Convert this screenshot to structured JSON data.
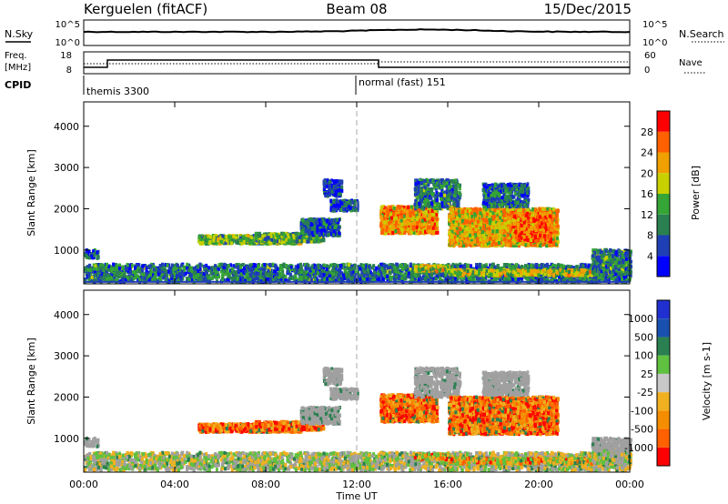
{
  "header": {
    "title": "Kerguelen (fitACF)",
    "beam": "Beam 08",
    "date": "15/Dec/2015"
  },
  "noise_panel": {
    "left_label": "N.Sky",
    "left_ticks": [
      "10^5",
      "10^0"
    ],
    "right_label": "N.Search",
    "right_ticks": [
      "10^5",
      "10^0"
    ]
  },
  "freq_panel": {
    "left_label_1": "Freq.",
    "left_label_2": "[MHz]",
    "left_ticks": [
      "18",
      "8"
    ],
    "right_label": "Nave",
    "right_ticks": [
      "60",
      "0"
    ],
    "cpid_label": "CPID",
    "cpid_1": "themis 3300",
    "cpid_2": "normal (fast) 151"
  },
  "colors": {
    "power": [
      "#0000ff",
      "#1f3fb4",
      "#2a8050",
      "#35a535",
      "#c8d000",
      "#f0a000",
      "#ff6000",
      "#ff0000"
    ],
    "velocity": [
      "#ff0000",
      "#ff6000",
      "#f58d00",
      "#f0b020",
      "#c8c8c8",
      "#60c040",
      "#2a8050",
      "#1a50b0",
      "#2030d0"
    ],
    "ground": "#a0a0a0"
  },
  "chart_data": [
    {
      "type": "heatmap",
      "name": "power",
      "ylabel": "Slant Range [km]",
      "yticks": [
        "1000",
        "2000",
        "3000",
        "4000"
      ],
      "ylim": [
        180,
        4590
      ],
      "colorbar_label": "Power [dB]",
      "colorbar_ticks": [
        "4",
        "8",
        "12",
        "16",
        "20",
        "24",
        "28"
      ],
      "clim": [
        0,
        32
      ]
    },
    {
      "type": "heatmap",
      "name": "velocity",
      "ylabel": "Slant Range [km]",
      "yticks": [
        "1000",
        "2000",
        "3000",
        "4000"
      ],
      "ylim": [
        180,
        4590
      ],
      "colorbar_label": "Velocity [m s-1]",
      "colorbar_ticks": [
        "1000",
        "500",
        "100",
        "25",
        "-25",
        "-100",
        "-500",
        "-1000"
      ]
    }
  ],
  "time_axis": {
    "xlabel": "Time UT",
    "ticks": [
      "00:00",
      "04:00",
      "08:00",
      "12:00",
      "16:00",
      "20:00",
      "00:00"
    ],
    "range_hours": [
      0,
      24
    ],
    "cpid_change_hour": 12
  },
  "echo_regions": [
    {
      "t0": 0.0,
      "t1": 24.0,
      "r0": 230,
      "r1": 650,
      "level": 0.28,
      "density": 0.55
    },
    {
      "t0": 5.0,
      "t1": 9.5,
      "r0": 1150,
      "r1": 1350,
      "level": 0.45,
      "density": 0.85
    },
    {
      "t0": 7.5,
      "t1": 10.5,
      "r0": 1200,
      "r1": 1400,
      "level": 0.4,
      "density": 0.75
    },
    {
      "t0": 9.5,
      "t1": 11.2,
      "r0": 1350,
      "r1": 1750,
      "level": 0.22,
      "density": 0.7
    },
    {
      "t0": 10.8,
      "t1": 12.0,
      "r0": 1950,
      "r1": 2200,
      "level": 0.22,
      "density": 0.75
    },
    {
      "t0": 10.5,
      "t1": 11.3,
      "r0": 2300,
      "r1": 2700,
      "level": 0.15,
      "density": 0.45
    },
    {
      "t0": 13.0,
      "t1": 15.5,
      "r0": 1400,
      "r1": 2050,
      "level": 0.7,
      "density": 0.85
    },
    {
      "t0": 14.5,
      "t1": 16.5,
      "r0": 2000,
      "r1": 2700,
      "level": 0.3,
      "density": 0.4
    },
    {
      "t0": 16.0,
      "t1": 20.8,
      "r0": 1100,
      "r1": 2000,
      "level": 0.65,
      "density": 0.8
    },
    {
      "t0": 18.8,
      "t1": 20.5,
      "r0": 1200,
      "r1": 1900,
      "level": 0.8,
      "density": 0.85
    },
    {
      "t0": 17.5,
      "t1": 19.5,
      "r0": 2050,
      "r1": 2600,
      "level": 0.25,
      "density": 0.45
    },
    {
      "t0": 14.5,
      "t1": 16.0,
      "r0": 480,
      "r1": 620,
      "level": 0.55,
      "density": 0.9
    },
    {
      "t0": 16.0,
      "t1": 22.5,
      "r0": 380,
      "r1": 520,
      "level": 0.55,
      "density": 0.7
    },
    {
      "t0": 22.3,
      "t1": 24.0,
      "r0": 400,
      "r1": 1000,
      "level": 0.3,
      "density": 0.55
    },
    {
      "t0": 0.0,
      "t1": 0.6,
      "r0": 800,
      "r1": 1000,
      "level": 0.25,
      "density": 0.5
    }
  ]
}
